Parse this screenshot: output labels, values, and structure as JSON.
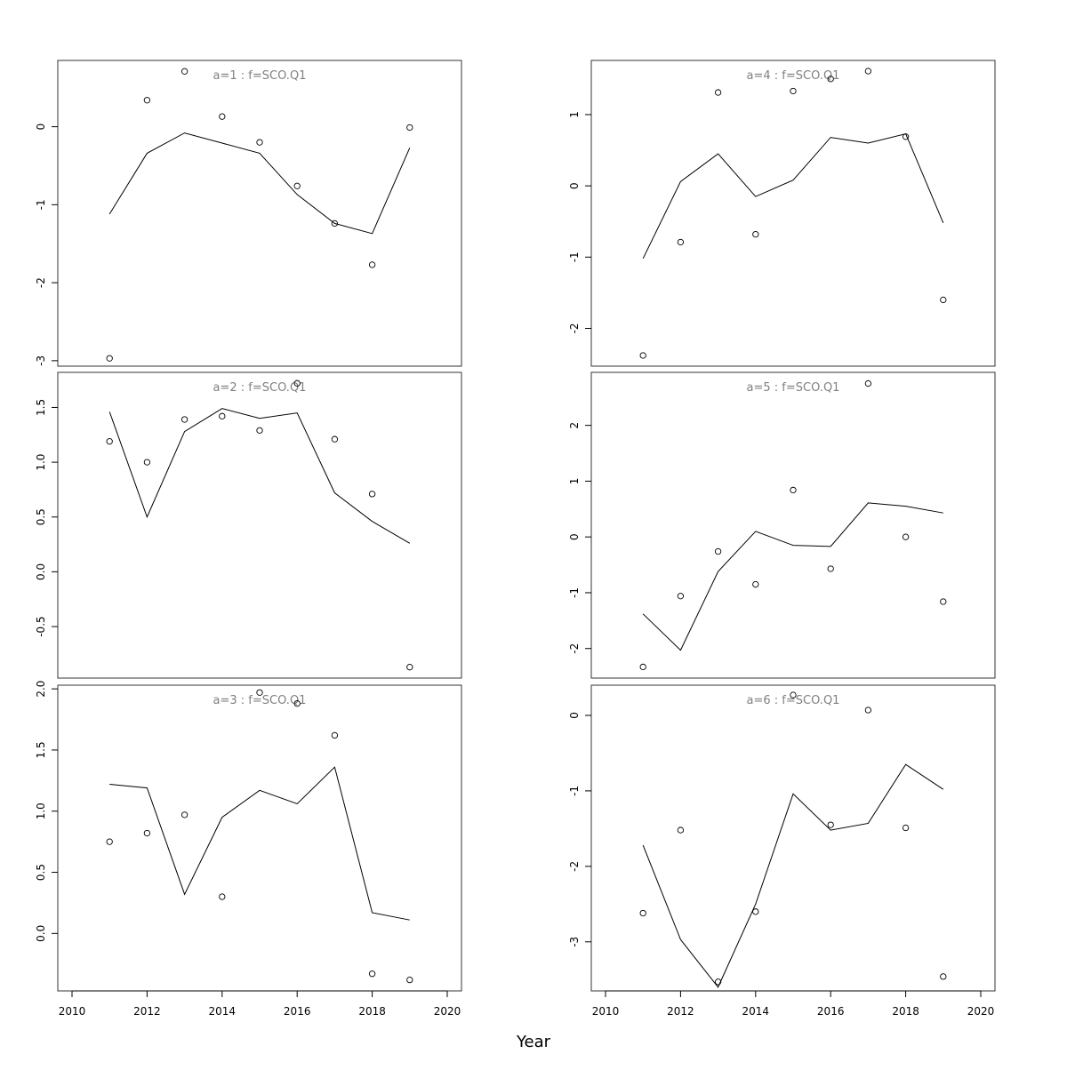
{
  "chart_data": {
    "type": "scatter",
    "xlabel": "Year",
    "x": [
      2011,
      2012,
      2013,
      2014,
      2015,
      2016,
      2017,
      2018,
      2019
    ],
    "xlim": [
      2010,
      2020
    ],
    "xticks": [
      2010,
      2012,
      2014,
      2016,
      2018,
      2020
    ],
    "panels": [
      {
        "title": "a=1 : f=SCO.Q1",
        "ylim": [
          -3.07,
          0.85
        ],
        "yticks": [
          -3,
          -2,
          -1,
          0
        ],
        "series": [
          {
            "kind": "points",
            "values": [
              -2.97,
              0.34,
              0.71,
              0.13,
              -0.2,
              -0.76,
              -1.24,
              -1.77,
              -0.01
            ]
          },
          {
            "kind": "line",
            "values": [
              -1.12,
              -0.34,
              -0.08,
              -0.21,
              -0.34,
              -0.87,
              -1.24,
              -1.37,
              -0.27
            ]
          }
        ]
      },
      {
        "title": "a=2 : f=SCO.Q1",
        "ylim": [
          -0.97,
          1.82
        ],
        "yticks": [
          -0.5,
          0.0,
          0.5,
          1.0,
          1.5
        ],
        "series": [
          {
            "kind": "points",
            "values": [
              1.19,
              1.0,
              1.39,
              1.42,
              1.29,
              1.72,
              1.21,
              0.71,
              -0.87
            ]
          },
          {
            "kind": "line",
            "values": [
              1.46,
              0.5,
              1.28,
              1.49,
              1.4,
              1.45,
              0.72,
              0.46,
              0.26
            ]
          }
        ]
      },
      {
        "title": "a=3 : f=SCO.Q1",
        "ylim": [
          -0.47,
          2.03
        ],
        "yticks": [
          0.0,
          0.5,
          1.0,
          1.5,
          2.0
        ],
        "series": [
          {
            "kind": "points",
            "values": [
              0.75,
              0.82,
              0.97,
              0.3,
              1.97,
              1.88,
              1.62,
              -0.33,
              -0.38
            ]
          },
          {
            "kind": "line",
            "values": [
              1.22,
              1.19,
              0.32,
              0.95,
              1.17,
              1.06,
              1.36,
              0.17,
              0.11
            ]
          }
        ]
      },
      {
        "title": "a=4 : f=SCO.Q1",
        "ylim": [
          -2.53,
          1.76
        ],
        "yticks": [
          -2,
          -1,
          0,
          1
        ],
        "series": [
          {
            "kind": "points",
            "values": [
              -2.38,
              -0.79,
              1.31,
              -0.68,
              1.33,
              1.5,
              1.61,
              0.69,
              -1.6
            ]
          },
          {
            "kind": "line",
            "values": [
              -1.02,
              0.06,
              0.45,
              -0.15,
              0.08,
              0.68,
              0.6,
              0.73,
              -0.52
            ]
          }
        ]
      },
      {
        "title": "a=5 : f=SCO.Q1",
        "ylim": [
          -2.53,
          2.95
        ],
        "yticks": [
          -2,
          -1,
          0,
          1,
          2
        ],
        "series": [
          {
            "kind": "points",
            "values": [
              -2.33,
              -1.06,
              -0.26,
              -0.85,
              0.84,
              -0.57,
              2.75,
              0.0,
              -1.16
            ]
          },
          {
            "kind": "line",
            "values": [
              -1.38,
              -2.03,
              -0.62,
              0.1,
              -0.15,
              -0.17,
              0.61,
              0.55,
              0.43
            ]
          }
        ]
      },
      {
        "title": "a=6 : f=SCO.Q1",
        "ylim": [
          -3.65,
          0.4
        ],
        "yticks": [
          -3,
          -2,
          -1,
          0
        ],
        "series": [
          {
            "kind": "points",
            "values": [
              -2.62,
              -1.52,
              -3.53,
              -2.6,
              0.27,
              -1.45,
              0.07,
              -1.49,
              -3.46
            ]
          },
          {
            "kind": "line",
            "values": [
              -1.72,
              -2.97,
              -3.6,
              -2.5,
              -1.04,
              -1.52,
              -1.43,
              -0.65,
              -0.98
            ]
          }
        ]
      }
    ]
  }
}
